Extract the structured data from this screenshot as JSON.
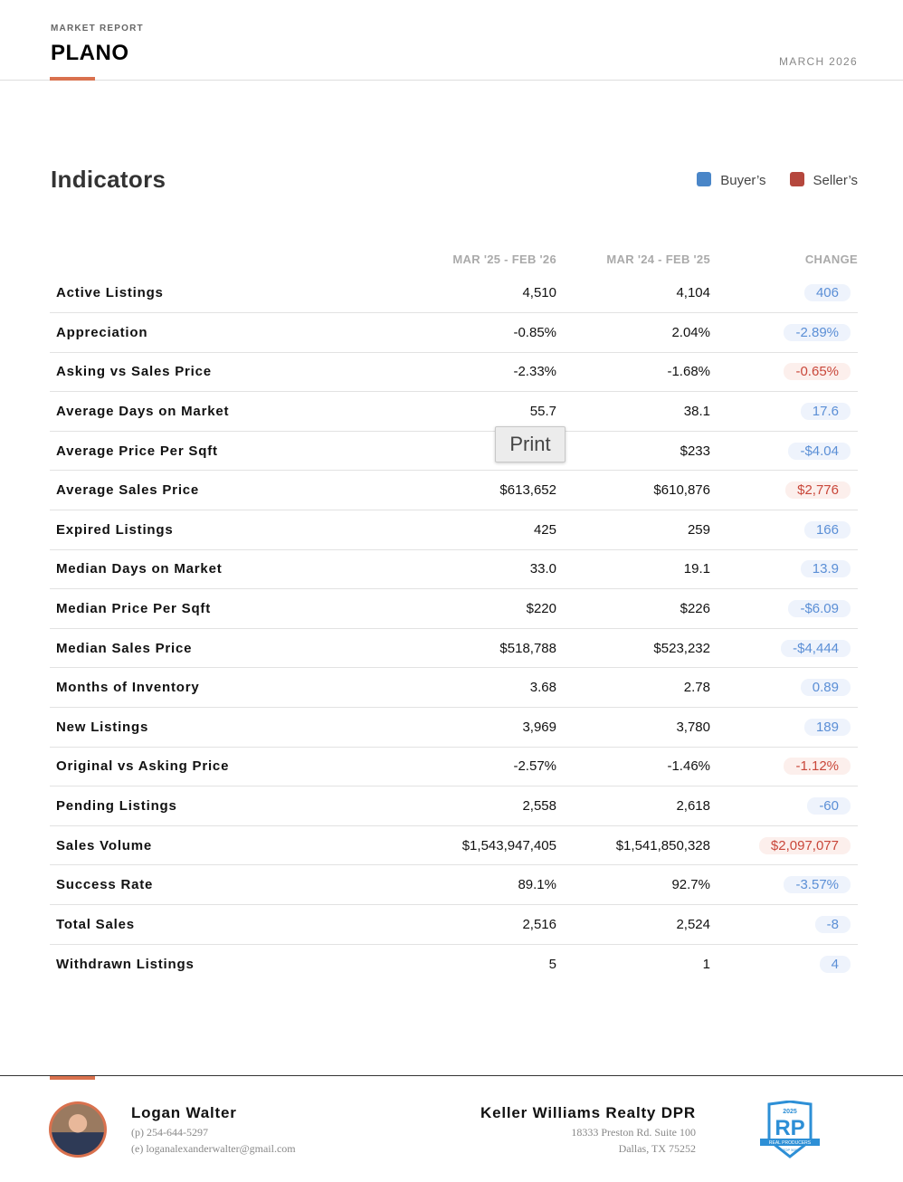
{
  "header": {
    "kicker": "MARKET REPORT",
    "title": "PLANO",
    "date": "MARCH 2026"
  },
  "section": {
    "title": "Indicators",
    "legend": [
      {
        "label": "Buyer’s",
        "color": "#4a86c8"
      },
      {
        "label": "Seller’s",
        "color": "#b5473d"
      }
    ]
  },
  "table": {
    "headers": [
      "",
      "MAR '25 - FEB '26",
      "MAR '24 - FEB '25",
      "CHANGE"
    ],
    "rows": [
      {
        "label": "Active Listings",
        "cur": "4,510",
        "prev": "4,104",
        "change": "406",
        "side": "b"
      },
      {
        "label": "Appreciation",
        "cur": "-0.85%",
        "prev": "2.04%",
        "change": "-2.89%",
        "side": "b"
      },
      {
        "label": "Asking vs Sales Price",
        "cur": "-2.33%",
        "prev": "-1.68%",
        "change": "-0.65%",
        "side": "r"
      },
      {
        "label": "Average Days on Market",
        "cur": "55.7",
        "prev": "38.1",
        "change": "17.6",
        "side": "b"
      },
      {
        "label": "Average Price Per Sqft",
        "cur": "",
        "prev": "$233",
        "change": "-$4.04",
        "side": "b"
      },
      {
        "label": "Average Sales Price",
        "cur": "$613,652",
        "prev": "$610,876",
        "change": "$2,776",
        "side": "r"
      },
      {
        "label": "Expired Listings",
        "cur": "425",
        "prev": "259",
        "change": "166",
        "side": "b"
      },
      {
        "label": "Median Days on Market",
        "cur": "33.0",
        "prev": "19.1",
        "change": "13.9",
        "side": "b"
      },
      {
        "label": "Median Price Per Sqft",
        "cur": "$220",
        "prev": "$226",
        "change": "-$6.09",
        "side": "b"
      },
      {
        "label": "Median Sales Price",
        "cur": "$518,788",
        "prev": "$523,232",
        "change": "-$4,444",
        "side": "b"
      },
      {
        "label": "Months of Inventory",
        "cur": "3.68",
        "prev": "2.78",
        "change": "0.89",
        "side": "b"
      },
      {
        "label": "New Listings",
        "cur": "3,969",
        "prev": "3,780",
        "change": "189",
        "side": "b"
      },
      {
        "label": "Original vs Asking Price",
        "cur": "-2.57%",
        "prev": "-1.46%",
        "change": "-1.12%",
        "side": "r"
      },
      {
        "label": "Pending Listings",
        "cur": "2,558",
        "prev": "2,618",
        "change": "-60",
        "side": "b"
      },
      {
        "label": "Sales Volume",
        "cur": "$1,543,947,405",
        "prev": "$1,541,850,328",
        "change": "$2,097,077",
        "side": "r"
      },
      {
        "label": "Success Rate",
        "cur": "89.1%",
        "prev": "92.7%",
        "change": "-3.57%",
        "side": "b"
      },
      {
        "label": "Total Sales",
        "cur": "2,516",
        "prev": "2,524",
        "change": "-8",
        "side": "b"
      },
      {
        "label": "Withdrawn Listings",
        "cur": "5",
        "prev": "1",
        "change": "4",
        "side": "b"
      }
    ]
  },
  "print_button": "Print",
  "footer": {
    "agent": "Logan Walter",
    "phone": "(p) 254-644-5297",
    "email": "(e) loganalexanderwalter@gmail.com",
    "brokerage": "Keller Williams Realty DPR",
    "address1": "18333 Preston Rd. Suite 100",
    "address2": "Dallas, TX 75252",
    "logo_text": "2025 RP REAL PRODUCERS TOP 500"
  }
}
